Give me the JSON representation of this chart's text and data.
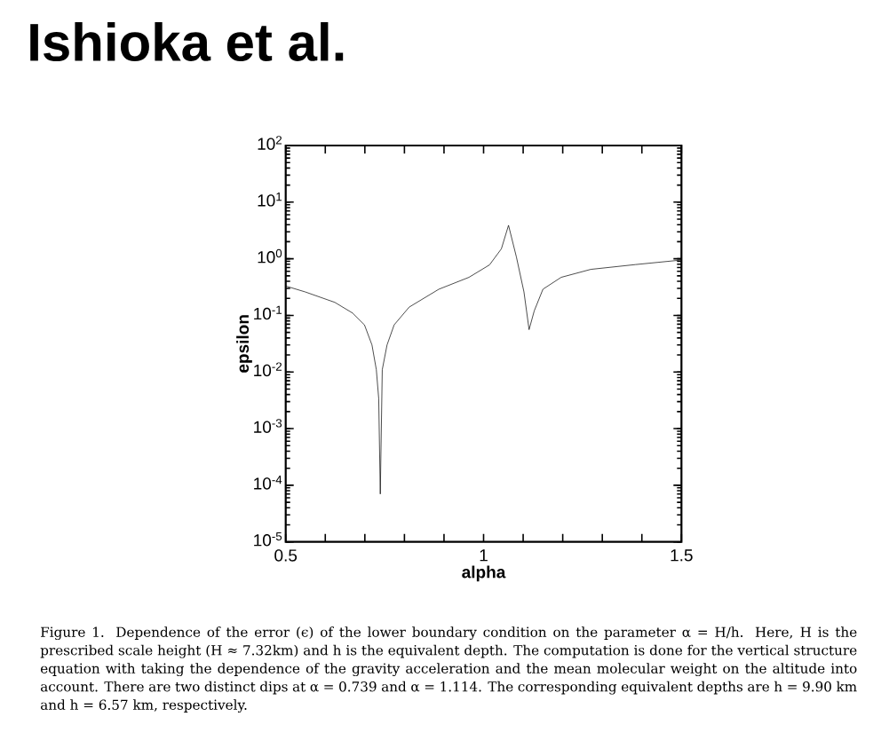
{
  "chart_data": {
    "type": "line",
    "title": "Ishioka et al.",
    "xlabel": "alpha",
    "ylabel": "epsilon",
    "log": "y",
    "xlim": [
      0.5,
      1.5
    ],
    "ylim": [
      1e-05,
      100
    ],
    "xticks": [
      0.5,
      {
        "value": 0.6,
        "label": null
      },
      {
        "value": 0.7,
        "label": null
      },
      {
        "value": 0.8,
        "label": null
      },
      {
        "value": 0.9,
        "label": null
      },
      1,
      {
        "value": 1.1,
        "label": null
      },
      {
        "value": 1.2,
        "label": null
      },
      {
        "value": 1.3,
        "label": null
      },
      {
        "value": 1.4,
        "label": null
      },
      1.5
    ],
    "yticks": [
      {
        "value": 1e-05,
        "label": "10$^{-5}$"
      },
      {
        "value": 0.0001,
        "label": "10$^{-4}$"
      },
      {
        "value": 0.001,
        "label": "10$^{-3}$"
      },
      {
        "value": 0.01,
        "label": "10$^{-2}$"
      },
      {
        "value": 0.1,
        "label": "10$^{-1}$"
      },
      {
        "value": 1,
        "label": "10$^{0}$"
      },
      {
        "value": 10,
        "label": "10$^{1}$"
      },
      {
        "value": 100,
        "label": "10$^{2}$"
      }
    ],
    "x": [
      0.5,
      0.549,
      0.624,
      0.669,
      0.699,
      0.718,
      0.729,
      0.735,
      0.739,
      0.744,
      0.756,
      0.774,
      0.812,
      0.887,
      0.963,
      1.015,
      1.045,
      1.063,
      1.083,
      1.102,
      1.115,
      1.128,
      1.15,
      1.196,
      1.271,
      1.384,
      1.5
    ],
    "series": [
      {
        "color": "#000000",
        "line_style": "solid",
        "values": [
          0.33,
          0.26,
          0.17,
          0.11,
          0.068,
          0.03,
          0.011,
          0.0034,
          7e-05,
          0.011,
          0.03,
          0.068,
          0.14,
          0.29,
          0.47,
          0.78,
          1.5,
          3.9,
          1.07,
          0.26,
          0.056,
          0.12,
          0.29,
          0.47,
          0.65,
          0.79,
          0.95
        ]
      }
    ],
    "annotations": [
      "Figure 1. Dependence of the error (ϵ) of the lower boundary condition on the parameter α = H/h. Here, H is the prescribed scale height (H ≈ 7.32km) and h is the equivalent depth. The computation is done for the vertical structure equation with taking the dependence of the gravity acceleration and the mean molecular weight on the altitude into account. There are two distinct dips at α = 0.739 and α = 1.114. The corresponding equivalent depths are h = 9.90 km and h = 6.57 km, respectively."
    ]
  }
}
